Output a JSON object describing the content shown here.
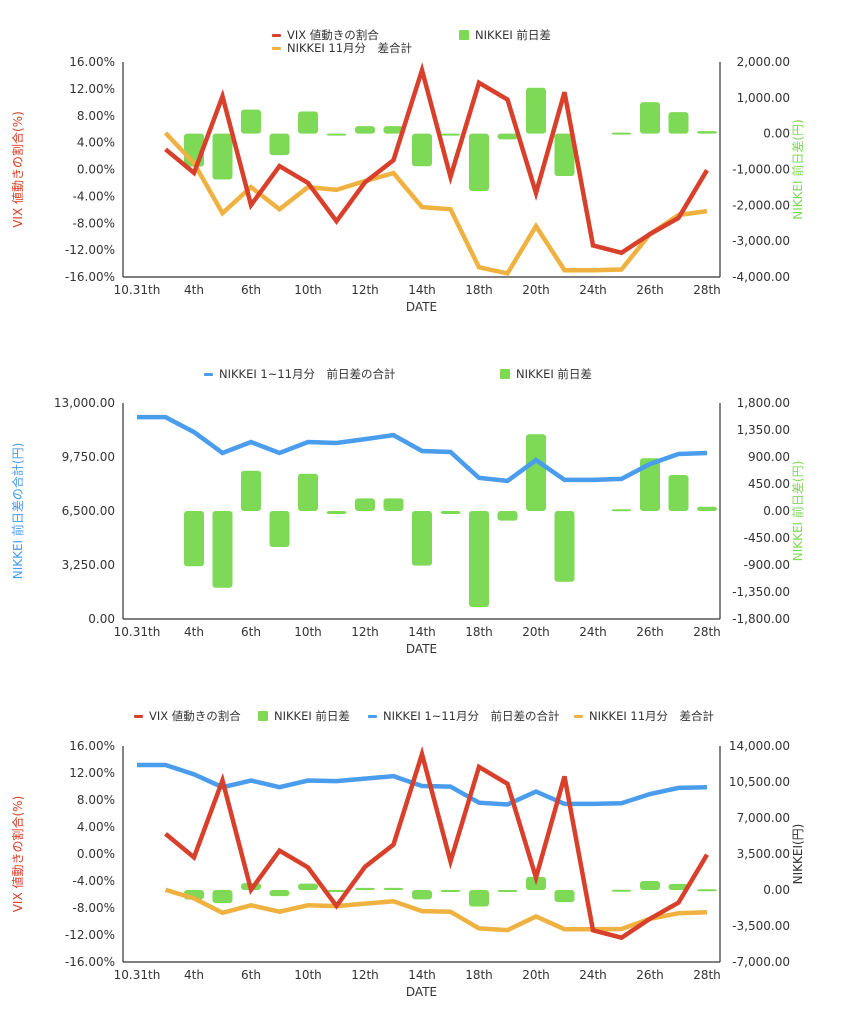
{
  "categories": [
    "10.31th",
    "",
    "4th",
    "",
    "6th",
    "",
    "10th",
    "",
    "12th",
    "",
    "14th",
    "",
    "18th",
    "",
    "20th",
    "",
    "24th",
    "",
    "26th",
    "",
    "28th"
  ],
  "colors": {
    "vix": "#d8402b",
    "nikkei_daily": "#7ed957",
    "nikkei_cum_total": "#4a9cec",
    "nikkei_nov_total": "#efb240",
    "axis_line": "#333333"
  },
  "chart_data": [
    {
      "type": "bar",
      "id": "chart1",
      "title": "",
      "xlabel": "DATE",
      "ylabel_left": "VIX 値動きの割合(%)",
      "ylabel_right": "NIKKEI 前日差(円)",
      "y_left_ticks": [
        "16.00%",
        "12.00%",
        "8.00%",
        "4.00%",
        "0.00%",
        "-4.00%",
        "-8.00%",
        "-12.00%",
        "-16.00%"
      ],
      "y_right_ticks": [
        "2,000.00",
        "1,000.00",
        "0.00",
        "-1,000.00",
        "-2,000.00",
        "-3,000.00",
        "-4,000.00"
      ],
      "ylim_left": [
        -16,
        16
      ],
      "ylim_right": [
        -4000,
        2000
      ],
      "legend": [
        {
          "label": "VIX 値動きの割合",
          "kind": "line",
          "series": "vix"
        },
        {
          "label": "NIKKEI 11月分　差合計",
          "kind": "line",
          "series": "nikkei_nov_total"
        },
        {
          "label": "NIKKEI 前日差",
          "kind": "bar",
          "series": "nikkei_daily"
        }
      ],
      "series": [
        {
          "name": "NIKKEI 前日差",
          "key": "nikkei_daily",
          "kind": "bar",
          "axis": "right",
          "values": [
            null,
            null,
            -920,
            -1280,
            670,
            -600,
            620,
            -50,
            210,
            210,
            -910,
            -50,
            -1600,
            -160,
            1280,
            -1180,
            null,
            30,
            880,
            600,
            70
          ]
        },
        {
          "name": "NIKKEI 11月分　差合計",
          "key": "nikkei_nov_total",
          "kind": "line",
          "axis": "right",
          "values": [
            null,
            20,
            -820,
            -2220,
            -1490,
            -2110,
            -1490,
            -1570,
            -1320,
            -1100,
            -2050,
            -2110,
            -3730,
            -3900,
            -2580,
            -3810,
            -3810,
            -3790,
            -2800,
            -2270,
            -2160
          ]
        },
        {
          "name": "VIX 値動きの割合",
          "key": "vix",
          "kind": "line",
          "axis": "left",
          "values": [
            null,
            3.0,
            -0.5,
            10.9,
            -5.3,
            0.5,
            -2.0,
            -7.7,
            -1.9,
            1.4,
            14.8,
            -1.1,
            12.9,
            10.4,
            -3.5,
            11.5,
            -11.3,
            -12.4,
            -9.6,
            -7.2,
            -0.1
          ]
        }
      ]
    },
    {
      "type": "bar",
      "id": "chart2",
      "title": "",
      "xlabel": "DATE",
      "ylabel_left": "NIKKEI 前日差の合計(円)",
      "ylabel_right": "NIKKEI 前日差(円)",
      "y_left_ticks": [
        "13,000.00",
        "9,750.00",
        "6,500.00",
        "3,250.00",
        "0.00"
      ],
      "y_right_ticks": [
        "1,800.00",
        "1,350.00",
        "900.00",
        "450.00",
        "0.00",
        "-450.00",
        "-900.00",
        "-1,350.00",
        "-1,800.00"
      ],
      "ylim_left": [
        0,
        13000
      ],
      "ylim_right": [
        -1800,
        1800
      ],
      "legend": [
        {
          "label": "NIKKEI 1~11月分　前日差の合計",
          "kind": "line",
          "series": "nikkei_cum_total"
        },
        {
          "label": "NIKKEI 前日差",
          "kind": "bar",
          "series": "nikkei_daily"
        }
      ],
      "series": [
        {
          "name": "NIKKEI 前日差",
          "key": "nikkei_daily",
          "kind": "bar",
          "axis": "right",
          "values": [
            null,
            null,
            -920,
            -1280,
            670,
            -600,
            620,
            -50,
            210,
            210,
            -910,
            -50,
            -1600,
            -160,
            1280,
            -1180,
            null,
            30,
            880,
            600,
            70
          ]
        },
        {
          "name": "NIKKEI 1~11月分　前日差の合計",
          "key": "nikkei_cum_total",
          "kind": "line",
          "axis": "left",
          "values": [
            12150,
            12150,
            11250,
            9990,
            10650,
            9990,
            10650,
            10590,
            10830,
            11070,
            10110,
            10050,
            8490,
            8310,
            9570,
            8370,
            8370,
            8430,
            9330,
            9930,
            9990
          ]
        }
      ]
    },
    {
      "type": "bar",
      "id": "chart3",
      "title": "",
      "xlabel": "DATE",
      "ylabel_left": "VIX 値動きの割合(%)",
      "ylabel_right": "NIKKEI(円)",
      "y_left_ticks": [
        "16.00%",
        "12.00%",
        "8.00%",
        "4.00%",
        "0.00%",
        "-4.00%",
        "-8.00%",
        "-12.00%",
        "-16.00%"
      ],
      "y_right_ticks": [
        "14,000.00",
        "10,500.00",
        "7,000.00",
        "3,500.00",
        "0.00",
        "-3,500.00",
        "-7,000.00"
      ],
      "ylim_left": [
        -16,
        16
      ],
      "ylim_right": [
        -7000,
        14000
      ],
      "legend": [
        {
          "label": "VIX 値動きの割合",
          "kind": "line",
          "series": "vix"
        },
        {
          "label": "NIKKEI 前日差",
          "kind": "bar",
          "series": "nikkei_daily"
        },
        {
          "label": "NIKKEI 1~11月分　前日差の合計",
          "kind": "line",
          "series": "nikkei_cum_total"
        },
        {
          "label": "NIKKEI 11月分　差合計",
          "kind": "line",
          "series": "nikkei_nov_total"
        }
      ],
      "series": [
        {
          "name": "NIKKEI 前日差",
          "key": "nikkei_daily",
          "kind": "bar",
          "axis": "right",
          "values": [
            null,
            null,
            -920,
            -1280,
            670,
            -600,
            620,
            -50,
            210,
            210,
            -910,
            -50,
            -1600,
            -160,
            1280,
            -1180,
            null,
            30,
            880,
            600,
            70
          ]
        },
        {
          "name": "NIKKEI 1~11月分　前日差の合計",
          "key": "nikkei_cum_total",
          "kind": "line",
          "axis": "right",
          "values": [
            12150,
            12150,
            11250,
            9990,
            10650,
            9990,
            10650,
            10590,
            10830,
            11070,
            10110,
            10050,
            8490,
            8310,
            9570,
            8370,
            8370,
            8430,
            9330,
            9930,
            9990
          ]
        },
        {
          "name": "NIKKEI 11月分　差合計",
          "key": "nikkei_nov_total",
          "kind": "line",
          "axis": "right",
          "values": [
            null,
            20,
            -820,
            -2220,
            -1490,
            -2110,
            -1490,
            -1570,
            -1320,
            -1100,
            -2050,
            -2110,
            -3730,
            -3900,
            -2580,
            -3810,
            -3810,
            -3790,
            -2800,
            -2270,
            -2160
          ]
        },
        {
          "name": "VIX 値動きの割合",
          "key": "vix",
          "kind": "line",
          "axis": "left",
          "values": [
            null,
            3.0,
            -0.5,
            10.9,
            -5.3,
            0.5,
            -2.0,
            -7.7,
            -1.9,
            1.4,
            14.8,
            -1.1,
            12.9,
            10.4,
            -3.5,
            11.5,
            -11.3,
            -12.4,
            -9.6,
            -7.2,
            -0.1
          ]
        }
      ]
    }
  ]
}
